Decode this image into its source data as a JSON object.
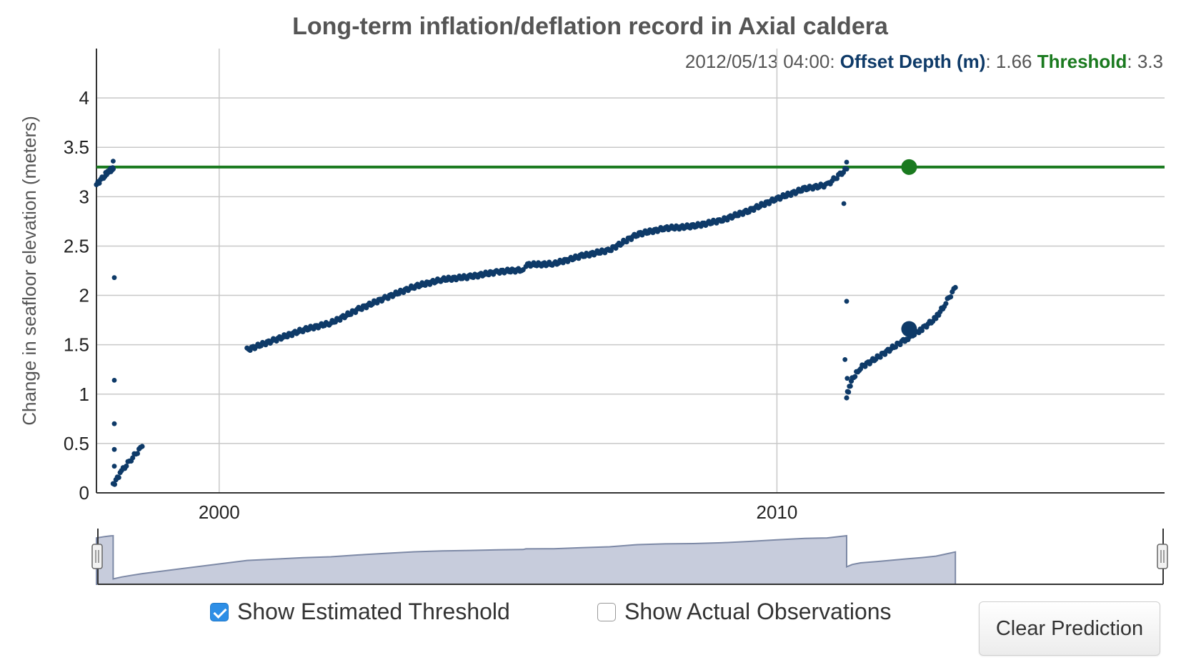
{
  "colors": {
    "series": "#0e3a68",
    "threshold": "#1a7a1f",
    "grid": "#c8c8c8",
    "axis": "#333333",
    "navigator_fill": "#c7ccdc",
    "navigator_line": "#7d89a6"
  },
  "readout": {
    "timestamp": "2012/05/13 04:00:",
    "series_label": "Offset Depth (m)",
    "series_value": ": 1.66",
    "threshold_label": "Threshold",
    "threshold_value": ": 3.3"
  },
  "chart_data": {
    "type": "scatter",
    "title": "Long-term inflation/deflation record in Axial caldera",
    "xlabel": "",
    "ylabel": "Change in seafloor elevation (meters)",
    "x_range": [
      1997.8,
      2016.95
    ],
    "ylim": [
      0,
      4.5
    ],
    "x_ticks": [
      2000,
      2010
    ],
    "y_ticks": [
      0,
      0.5,
      1,
      1.5,
      2,
      2.5,
      3,
      3.5,
      4
    ],
    "grid": true,
    "series": [
      {
        "name": "Offset Depth (m)",
        "segments": [
          {
            "x": [
              1997.8,
              1997.95,
              1998.05,
              1998.1
            ],
            "y": [
              3.12,
              3.22,
              3.27,
              3.28
            ]
          },
          {
            "x": [
              1998.1,
              1998.25,
              1998.45,
              1998.62
            ],
            "y": [
              0.08,
              0.22,
              0.36,
              0.47
            ]
          },
          {
            "x": [
              2000.5,
              2001.0,
              2001.5,
              2002.0,
              2002.5,
              2003.0,
              2003.5,
              2004.0,
              2004.5,
              2005.0,
              2005.45
            ],
            "y": [
              1.45,
              1.55,
              1.65,
              1.72,
              1.86,
              1.98,
              2.09,
              2.16,
              2.19,
              2.24,
              2.26
            ]
          },
          {
            "x": [
              2005.5,
              2006.0,
              2006.5,
              2007.0,
              2007.5,
              2008.0,
              2008.5,
              2009.0,
              2009.5,
              2010.0,
              2010.5,
              2010.9,
              2011.25
            ],
            "y": [
              2.31,
              2.32,
              2.4,
              2.46,
              2.62,
              2.68,
              2.7,
              2.76,
              2.86,
              2.98,
              3.08,
              3.12,
              3.28
            ]
          },
          {
            "x": [
              2011.25,
              2011.35,
              2011.5,
              2011.8,
              2012.1,
              2012.35,
              2012.6,
              2012.85,
              2013.0,
              2013.2
            ],
            "y": [
              0.98,
              1.15,
              1.27,
              1.37,
              1.48,
              1.57,
              1.66,
              1.77,
              1.9,
              2.08
            ]
          }
        ],
        "isolated_points": [
          {
            "x": 1998.1,
            "y": 3.36
          },
          {
            "x": 1998.12,
            "y": 2.18
          },
          {
            "x": 1998.12,
            "y": 1.14
          },
          {
            "x": 1998.12,
            "y": 0.7
          },
          {
            "x": 1998.12,
            "y": 0.44
          },
          {
            "x": 1998.12,
            "y": 0.27
          },
          {
            "x": 2011.2,
            "y": 2.93
          },
          {
            "x": 2011.25,
            "y": 1.94
          },
          {
            "x": 2011.22,
            "y": 1.35
          },
          {
            "x": 2011.26,
            "y": 1.16
          },
          {
            "x": 2011.25,
            "y": 3.35
          }
        ]
      }
    ],
    "threshold": {
      "name": "Threshold",
      "value": 3.3
    },
    "selected_point": {
      "x": 2012.37,
      "y": 1.66
    },
    "threshold_marker": {
      "x": 2012.37,
      "y": 3.3
    }
  },
  "controls": {
    "show_threshold": {
      "label": "Show Estimated Threshold",
      "checked": true
    },
    "show_observations": {
      "label": "Show Actual Observations",
      "checked": false
    },
    "clear_button": "Clear Prediction"
  }
}
